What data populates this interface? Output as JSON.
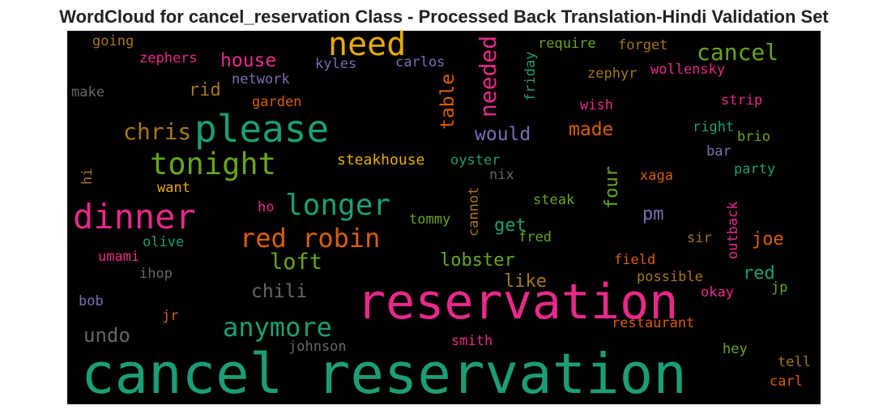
{
  "chart_data": {
    "type": "wordcloud",
    "title": "WordCloud for cancel_reservation Class - Processed Back Translation-Hindi Validation Set",
    "background": "#000000",
    "words": [
      {
        "text": "cancel reservation",
        "color": "#1b9e77"
      },
      {
        "text": "reservation",
        "color": "#e7298a"
      },
      {
        "text": "dinner",
        "color": "#e7298a"
      },
      {
        "text": "please",
        "color": "#1b9e77"
      },
      {
        "text": "tonight",
        "color": "#66a61e"
      },
      {
        "text": "need",
        "color": "#e6ab02"
      },
      {
        "text": "longer",
        "color": "#1b9e77"
      },
      {
        "text": "red robin",
        "color": "#d95f02"
      },
      {
        "text": "anymore",
        "color": "#1b9e77"
      },
      {
        "text": "cancel",
        "color": "#66a61e"
      },
      {
        "text": "chris",
        "color": "#a6761d"
      },
      {
        "text": "loft",
        "color": "#66a61e"
      },
      {
        "text": "house",
        "color": "#e7298a"
      },
      {
        "text": "needed",
        "color": "#e7298a"
      },
      {
        "text": "table",
        "color": "#d95f02"
      },
      {
        "text": "would",
        "color": "#7570b3"
      },
      {
        "text": "made",
        "color": "#d95f02"
      },
      {
        "text": "rid",
        "color": "#a6761d"
      },
      {
        "text": "chili",
        "color": "#666666"
      },
      {
        "text": "undo",
        "color": "#666666"
      },
      {
        "text": "lobster",
        "color": "#66a61e"
      },
      {
        "text": "like",
        "color": "#a6761d"
      },
      {
        "text": "red",
        "color": "#1b9e77"
      },
      {
        "text": "joe",
        "color": "#d95f02"
      },
      {
        "text": "pm",
        "color": "#7570b3"
      },
      {
        "text": "get",
        "color": "#1b9e77"
      },
      {
        "text": "four",
        "color": "#66a61e"
      },
      {
        "text": "steakhouse",
        "color": "#e6ab02"
      },
      {
        "text": "oyster",
        "color": "#1b9e77"
      },
      {
        "text": "nix",
        "color": "#666666"
      },
      {
        "text": "xaga",
        "color": "#d95f02"
      },
      {
        "text": "party",
        "color": "#1b9e77"
      },
      {
        "text": "bar",
        "color": "#7570b3"
      },
      {
        "text": "brio",
        "color": "#66a61e"
      },
      {
        "text": "right",
        "color": "#1b9e77"
      },
      {
        "text": "strip",
        "color": "#e7298a"
      },
      {
        "text": "wish",
        "color": "#e7298a"
      },
      {
        "text": "zephyr",
        "color": "#a6761d"
      },
      {
        "text": "wollensky",
        "color": "#e7298a"
      },
      {
        "text": "forget",
        "color": "#a6761d"
      },
      {
        "text": "require",
        "color": "#66a61e"
      },
      {
        "text": "friday",
        "color": "#1b9e77"
      },
      {
        "text": "carlos",
        "color": "#7570b3"
      },
      {
        "text": "kyles",
        "color": "#7570b3"
      },
      {
        "text": "network",
        "color": "#7570b3"
      },
      {
        "text": "garden",
        "color": "#d95f02"
      },
      {
        "text": "zephers",
        "color": "#e7298a"
      },
      {
        "text": "going",
        "color": "#a6761d"
      },
      {
        "text": "make",
        "color": "#666666"
      },
      {
        "text": "hi",
        "color": "#a6761d"
      },
      {
        "text": "want",
        "color": "#e6ab02"
      },
      {
        "text": "ho",
        "color": "#e7298a"
      },
      {
        "text": "steak",
        "color": "#66a61e"
      },
      {
        "text": "cannot",
        "color": "#a6761d"
      },
      {
        "text": "tommy",
        "color": "#66a61e"
      },
      {
        "text": "fred",
        "color": "#66a61e"
      },
      {
        "text": "outback",
        "color": "#e7298a"
      },
      {
        "text": "sir",
        "color": "#a6761d"
      },
      {
        "text": "field",
        "color": "#d95f02"
      },
      {
        "text": "possible",
        "color": "#a6761d"
      },
      {
        "text": "okay",
        "color": "#e7298a"
      },
      {
        "text": "jp",
        "color": "#66a61e"
      },
      {
        "text": "olive",
        "color": "#1b9e77"
      },
      {
        "text": "umami",
        "color": "#e7298a"
      },
      {
        "text": "ihop",
        "color": "#666666"
      },
      {
        "text": "bob",
        "color": "#7570b3"
      },
      {
        "text": "jr",
        "color": "#d95f02"
      },
      {
        "text": "restaurant",
        "color": "#d95f02"
      },
      {
        "text": "smith",
        "color": "#e7298a"
      },
      {
        "text": "johnson",
        "color": "#666666"
      },
      {
        "text": "hey",
        "color": "#66a61e"
      },
      {
        "text": "tell",
        "color": "#a6761d"
      },
      {
        "text": "carl",
        "color": "#d95f02"
      }
    ]
  }
}
